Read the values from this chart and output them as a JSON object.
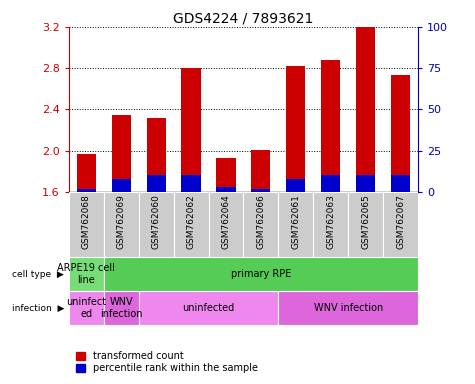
{
  "title": "GDS4224 / 7893621",
  "samples": [
    "GSM762068",
    "GSM762069",
    "GSM762060",
    "GSM762062",
    "GSM762064",
    "GSM762066",
    "GSM762061",
    "GSM762063",
    "GSM762065",
    "GSM762067"
  ],
  "transformed_count": [
    1.97,
    2.35,
    2.32,
    2.8,
    1.93,
    2.01,
    2.82,
    2.88,
    3.2,
    2.73
  ],
  "percentile_rank": [
    2,
    8,
    10,
    10,
    3,
    2,
    8,
    10,
    10,
    10
  ],
  "ylim_left": [
    1.6,
    3.2
  ],
  "ylim_right": [
    0,
    100
  ],
  "yticks_left": [
    1.6,
    2.0,
    2.4,
    2.8,
    3.2
  ],
  "yticks_right": [
    0,
    25,
    50,
    75,
    100
  ],
  "cell_type_labels": [
    {
      "label": "ARPE19 cell\nline",
      "start": 0,
      "end": 1,
      "color": "#77dd77"
    },
    {
      "label": "primary RPE",
      "start": 1,
      "end": 10,
      "color": "#55cc55"
    }
  ],
  "infection_labels": [
    {
      "label": "uninfect\ned",
      "start": 0,
      "end": 1,
      "color": "#ee88ee"
    },
    {
      "label": "WNV\ninfection",
      "start": 1,
      "end": 2,
      "color": "#dd66dd"
    },
    {
      "label": "uninfected",
      "start": 2,
      "end": 6,
      "color": "#ee88ee"
    },
    {
      "label": "WNV infection",
      "start": 6,
      "end": 10,
      "color": "#dd66dd"
    }
  ],
  "bar_color": "#cc0000",
  "percentile_color": "#0000cc",
  "background_color": "#ffffff",
  "sample_bg_color": "#cccccc",
  "annotation_color_left": "#cc0000",
  "annotation_color_right": "#0000bb",
  "base_value": 1.6,
  "bar_width": 0.55
}
